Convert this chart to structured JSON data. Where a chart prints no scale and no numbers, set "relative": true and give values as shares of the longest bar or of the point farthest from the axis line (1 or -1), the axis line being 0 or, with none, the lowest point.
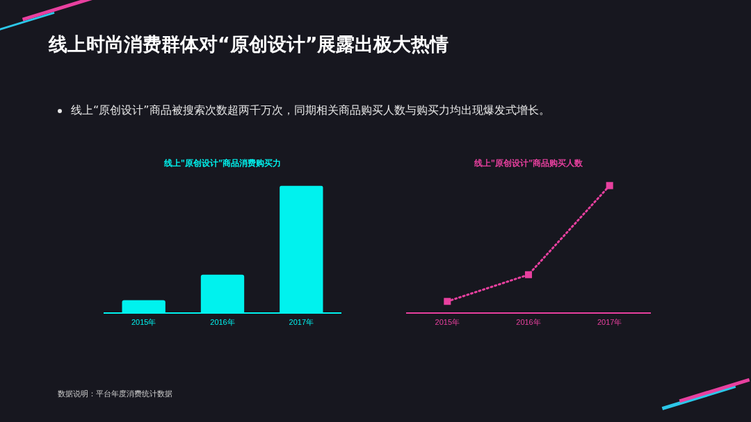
{
  "chart_data": [
    {
      "type": "other",
      "title": "线上时尚消费群体对“原创设计”展露出极大热情",
      "subtitle": "线上“原创设计”商品被搜索次数超两千万次，同期相关商品购买人数与购买力均出现爆发式增长。",
      "annotations": [
        "数据说明：平台年度消费统计数据"
      ]
    },
    {
      "type": "bar",
      "title": "线上\"原创设计\"商品消费购买力",
      "categories": [
        "2015年",
        "2016年",
        "2017年"
      ],
      "relative": true,
      "grid": false,
      "legend": false,
      "series": [
        {
          "color": "#00f2ee",
          "values": [
            0.1,
            0.3,
            1
          ]
        }
      ]
    },
    {
      "type": "line",
      "title": "线上\"原创设计\"商品购买人数",
      "categories": [
        "2015年",
        "2016年",
        "2017年"
      ],
      "relative": true,
      "grid": false,
      "legend": false,
      "marker": "square",
      "line_style": "dotted",
      "series": [
        {
          "color": "#e8409f",
          "values": [
            0.09,
            0.3,
            1
          ]
        }
      ]
    }
  ]
}
